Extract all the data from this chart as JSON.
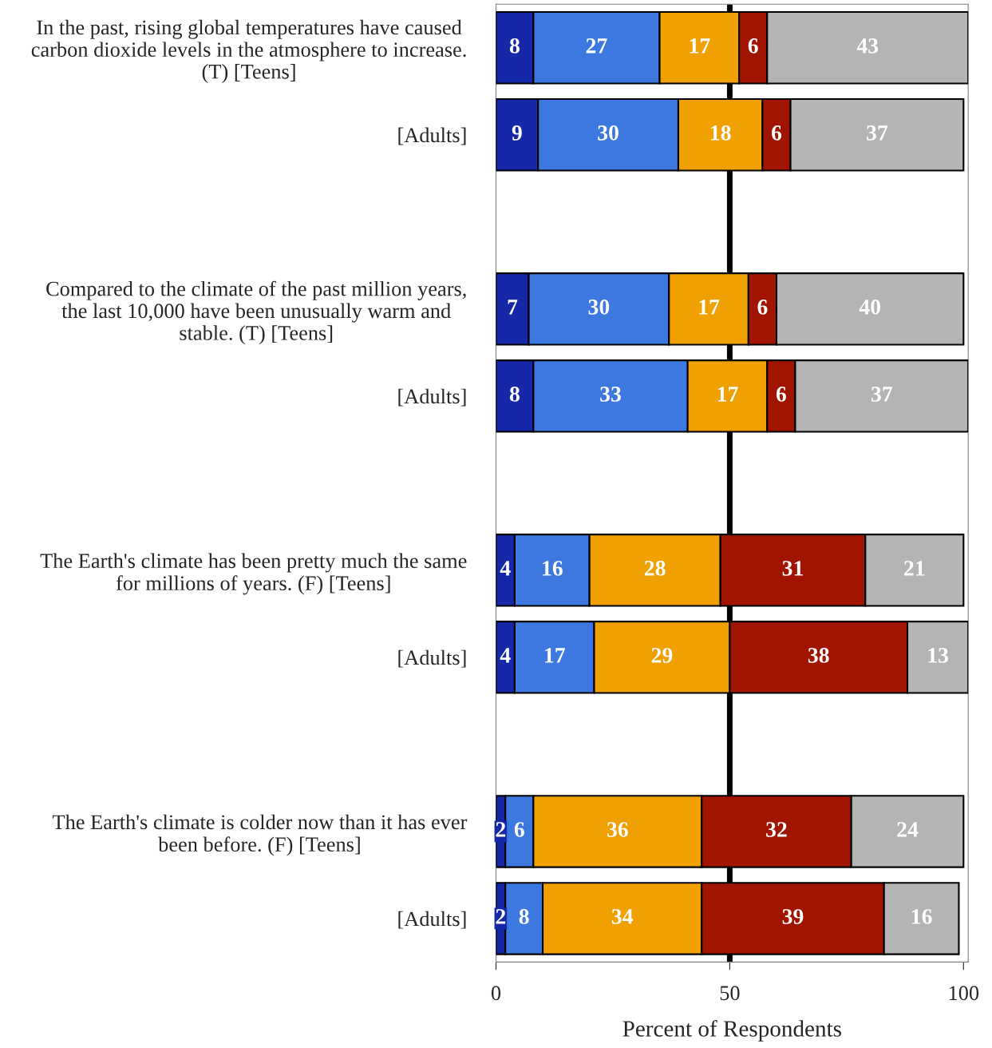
{
  "chart_data": {
    "type": "bar",
    "orientation": "horizontal",
    "stacked": true,
    "data_labels": true,
    "grid": false,
    "legend": false,
    "xlabel": "Percent of Respondents",
    "categories": [
      "In the past, rising global temperatures have caused\ncarbon dioxide levels in the atmosphere to increase.\n(T) [Teens]",
      "[Adults]",
      null,
      "Compared to the climate of the past million years,\nthe last 10,000 have been unusually warm and\nstable. (T) [Teens]",
      "[Adults]",
      null,
      "The Earth's climate has been pretty much the same\nfor millions of years. (F) [Teens]",
      "[Adults]",
      null,
      "The Earth's climate is colder now than it has ever\nbeen before. (F) [Teens]",
      "[Adults]"
    ],
    "series": [
      {
        "color": "#1428a8",
        "values": [
          8,
          9,
          null,
          7,
          8,
          null,
          4,
          4,
          null,
          2,
          2
        ]
      },
      {
        "color": "#3c78e0",
        "values": [
          27,
          30,
          null,
          30,
          33,
          null,
          16,
          17,
          null,
          6,
          8
        ]
      },
      {
        "color": "#f0a000",
        "values": [
          17,
          18,
          null,
          17,
          17,
          null,
          28,
          29,
          null,
          36,
          34
        ]
      },
      {
        "color": "#a01400",
        "values": [
          6,
          6,
          null,
          6,
          6,
          null,
          31,
          38,
          null,
          32,
          39
        ]
      },
      {
        "color": "#b4b4b4",
        "values": [
          43,
          37,
          null,
          40,
          37,
          null,
          21,
          13,
          null,
          24,
          16
        ]
      }
    ],
    "xlim": [
      0,
      101
    ],
    "xticks": [
      0,
      50,
      100
    ],
    "ref_lines": [
      {
        "axis": "x",
        "value": 50,
        "color": "#000000"
      }
    ]
  }
}
